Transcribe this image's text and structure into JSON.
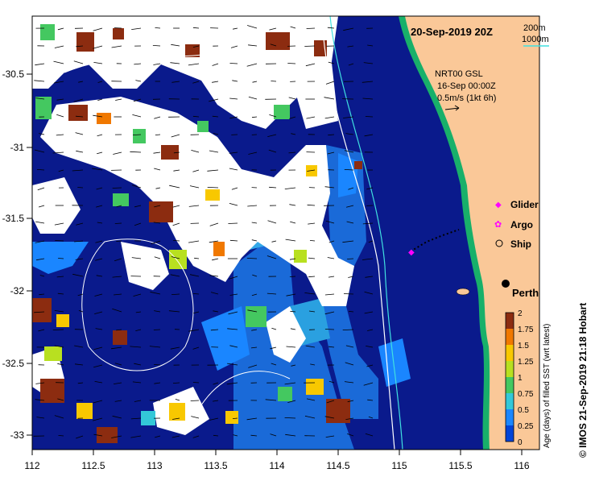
{
  "title": "20-Sep-2019 20Z",
  "depth_legend": {
    "shallow": "200m",
    "deep": "1000m"
  },
  "current_info": {
    "line1": "NRT00 GSL",
    "line2": "16-Sep 00:00Z",
    "line3": "0.5m/s (1kt 6h)"
  },
  "legend": {
    "glider": {
      "label": "Glider",
      "marker": "◆",
      "color": "#ff00ff"
    },
    "argo": {
      "label": "Argo",
      "marker": "✿",
      "color": "#ff00ff"
    },
    "ship": {
      "label": "Ship",
      "marker": "○",
      "color": "#000000"
    }
  },
  "city": {
    "name": "Perth"
  },
  "colorbar": {
    "label": "Age (days) of filled SST (wrt latest)",
    "ticks": [
      "0",
      "0.25",
      "0.5",
      "0.75",
      "1",
      "1.25",
      "1.5",
      "1.75",
      "2"
    ],
    "colors": [
      "#001a8c",
      "#0044d8",
      "#1a86ff",
      "#33c8d8",
      "#44c860",
      "#b8e020",
      "#f8c800",
      "#f07800",
      "#8c2c10"
    ]
  },
  "credit": "© IMOS 21-Sep-2019 21:18 Hobart",
  "axes": {
    "x_ticks": [
      "112",
      "112.5",
      "113",
      "113.5",
      "114",
      "114.5",
      "115",
      "115.5",
      "116"
    ],
    "y_ticks": [
      "-30.5",
      "-31",
      "-31.5",
      "-32",
      "-32.5",
      "-33"
    ]
  },
  "colors": {
    "ocean_deep": "#0a1a8c",
    "land": "#fac898",
    "coastal_strip": "#18b06a",
    "no_data": "#ffffff",
    "isobath_shallow": "#40e0e0",
    "isobath_deep": "#ffffff"
  }
}
